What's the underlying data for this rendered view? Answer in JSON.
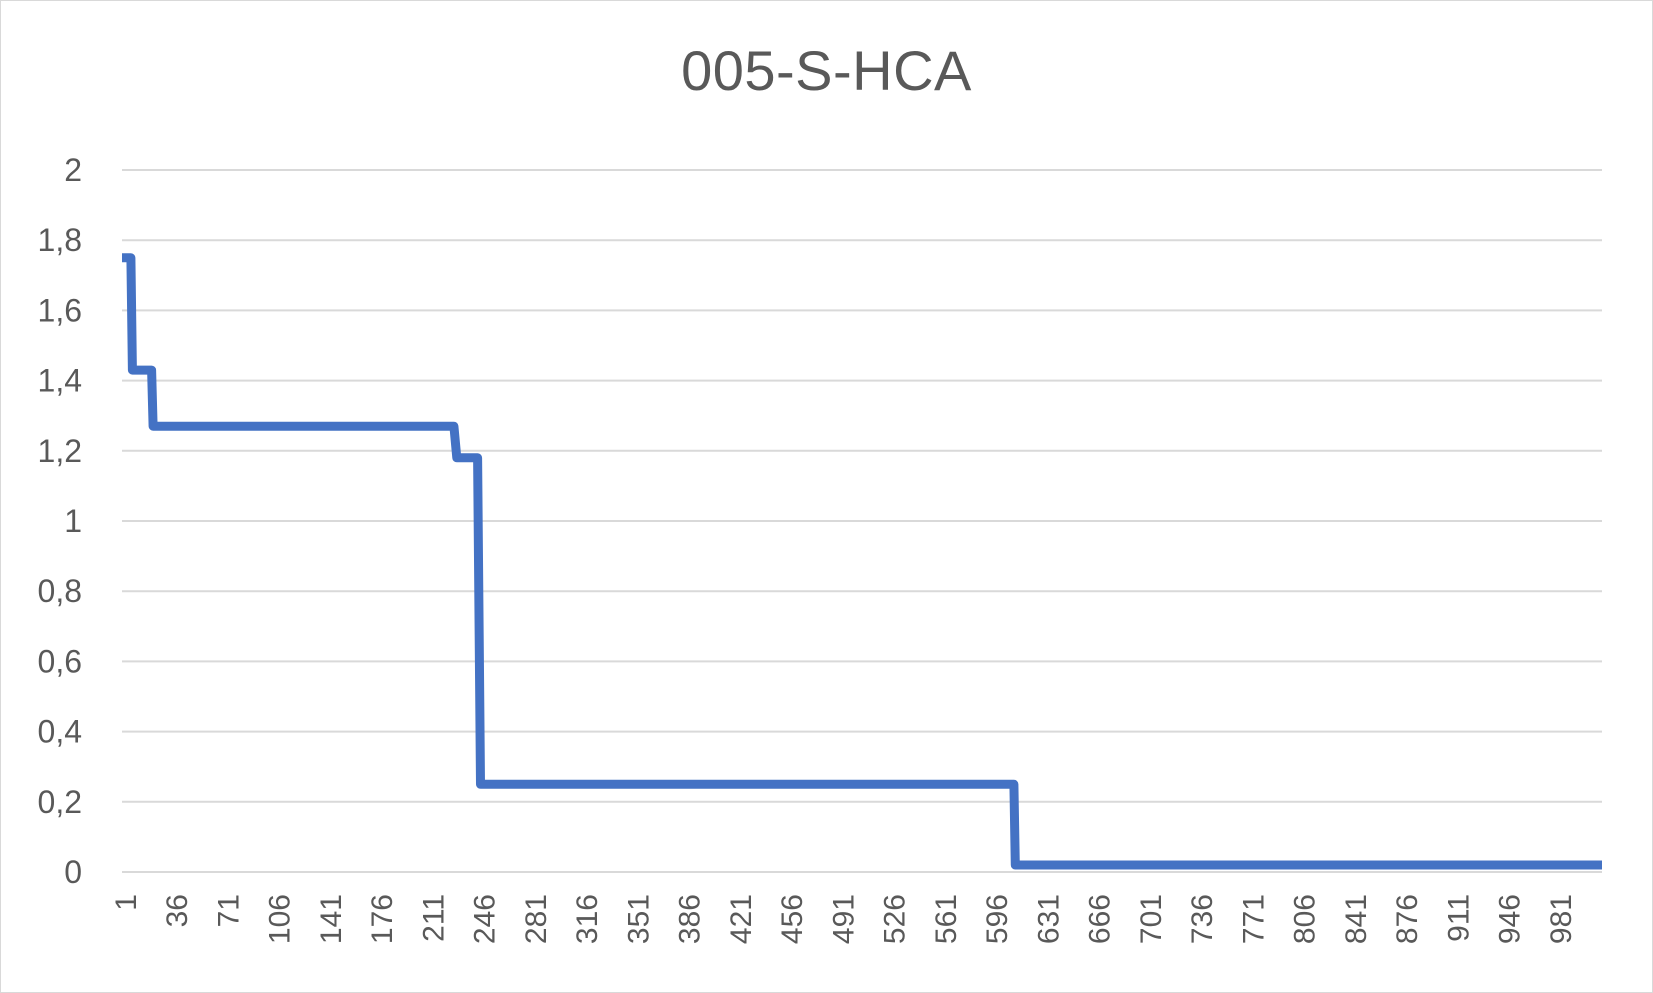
{
  "chart_data": {
    "type": "line",
    "title": "005-S-HCA",
    "xlabel": "",
    "ylabel": "",
    "ylim": [
      0,
      2
    ],
    "xlim": [
      1,
      1000
    ],
    "y_ticks": [
      {
        "value": 0,
        "label": "0"
      },
      {
        "value": 0.2,
        "label": "0,2"
      },
      {
        "value": 0.4,
        "label": "0,4"
      },
      {
        "value": 0.6,
        "label": "0,6"
      },
      {
        "value": 0.8,
        "label": "0,8"
      },
      {
        "value": 1,
        "label": "1"
      },
      {
        "value": 1.2,
        "label": "1,2"
      },
      {
        "value": 1.4,
        "label": "1,4"
      },
      {
        "value": 1.6,
        "label": "1,6"
      },
      {
        "value": 1.8,
        "label": "1,8"
      },
      {
        "value": 2,
        "label": "2"
      }
    ],
    "x_tick_labels": [
      "1",
      "36",
      "71",
      "106",
      "141",
      "176",
      "211",
      "246",
      "281",
      "316",
      "351",
      "386",
      "421",
      "456",
      "491",
      "526",
      "561",
      "596",
      "631",
      "666",
      "701",
      "736",
      "771",
      "806",
      "841",
      "876",
      "911",
      "946",
      "981"
    ],
    "grid": true,
    "legend": "none",
    "series": [
      {
        "color": "#4472C4",
        "points": [
          {
            "x": 1,
            "y": 1.75
          },
          {
            "x": 7,
            "y": 1.75
          },
          {
            "x": 8,
            "y": 1.43
          },
          {
            "x": 21,
            "y": 1.43
          },
          {
            "x": 22,
            "y": 1.27
          },
          {
            "x": 225,
            "y": 1.27
          },
          {
            "x": 227,
            "y": 1.18
          },
          {
            "x": 241,
            "y": 1.18
          },
          {
            "x": 243,
            "y": 0.25
          },
          {
            "x": 603,
            "y": 0.25
          },
          {
            "x": 604,
            "y": 0.02
          },
          {
            "x": 1000,
            "y": 0.02
          }
        ]
      }
    ]
  }
}
